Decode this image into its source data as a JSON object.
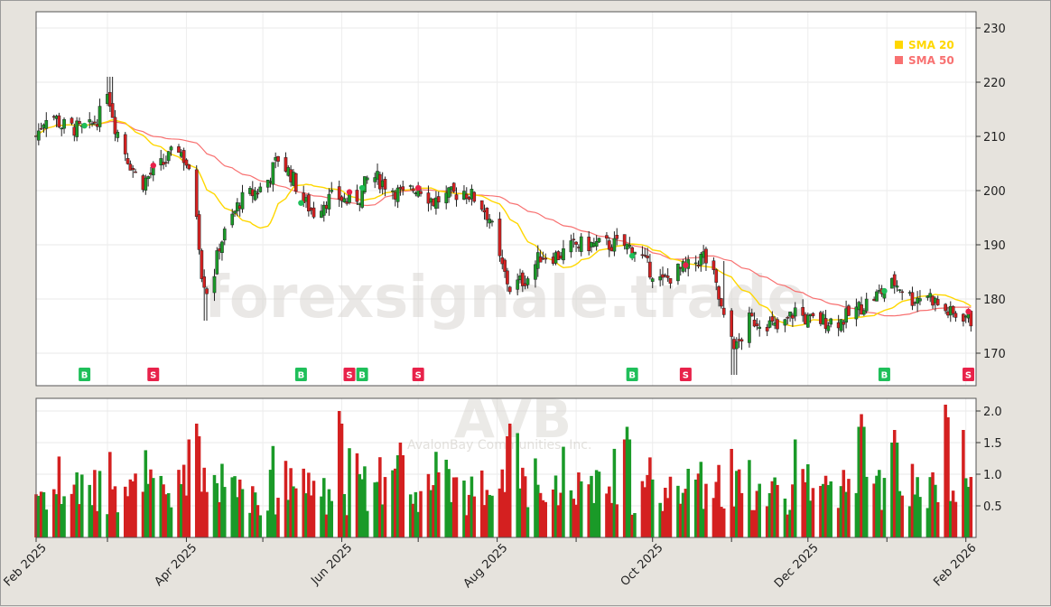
{
  "chart_data": {
    "type": "candlestick",
    "ticker": "AVB",
    "company": "AvalonBay Communities, Inc.",
    "watermark": "forexsignale.trade",
    "x_labels": [
      "Feb 2025",
      "Apr 2025",
      "Jun 2025",
      "Aug 2025",
      "Oct 2025",
      "Dec 2025",
      "Feb 2026"
    ],
    "x_label_days": [
      0,
      59,
      120,
      181,
      242,
      303,
      365
    ],
    "x_minor_days": [
      28,
      89,
      150,
      212,
      273,
      334
    ],
    "x_range_days": [
      0,
      369
    ],
    "price_axis": {
      "ylim": [
        164,
        233
      ],
      "ticks": [
        170,
        180,
        190,
        200,
        210,
        220,
        230
      ]
    },
    "volume_axis": {
      "ylim": [
        0,
        2.2
      ],
      "ticks": [
        0.5,
        1.0,
        1.5,
        2.0
      ],
      "tick_labels": [
        "0.5",
        "1.0",
        "1.5",
        "2.0"
      ]
    },
    "legend": [
      {
        "name": "SMA 20",
        "color": "#FFD700"
      },
      {
        "name": "SMA 50",
        "color": "#F87171"
      }
    ],
    "colors": {
      "up": "#1a9a28",
      "down": "#d42020",
      "sma20": "#FFD700",
      "sma50": "#F87171",
      "buy": "#1fbf5a",
      "sell": "#e8224a"
    },
    "close_anchors": [
      [
        0,
        210
      ],
      [
        5,
        215
      ],
      [
        10,
        212
      ],
      [
        20,
        211
      ],
      [
        25,
        214
      ],
      [
        28,
        219
      ],
      [
        31,
        212
      ],
      [
        36,
        206
      ],
      [
        41,
        201
      ],
      [
        45,
        203
      ],
      [
        50,
        205
      ],
      [
        56,
        208
      ],
      [
        59,
        205
      ],
      [
        63,
        196
      ],
      [
        65,
        185
      ],
      [
        68,
        180
      ],
      [
        72,
        190
      ],
      [
        76,
        194
      ],
      [
        80,
        198
      ],
      [
        90,
        201
      ],
      [
        95,
        206
      ],
      [
        100,
        203
      ],
      [
        105,
        198
      ],
      [
        109,
        196
      ],
      [
        113,
        198
      ],
      [
        118,
        199
      ],
      [
        122,
        198
      ],
      [
        127,
        199
      ],
      [
        131,
        203
      ],
      [
        138,
        201
      ],
      [
        144,
        199
      ],
      [
        150,
        201
      ],
      [
        156,
        198
      ],
      [
        162,
        199
      ],
      [
        168,
        200
      ],
      [
        174,
        198
      ],
      [
        178,
        195
      ],
      [
        182,
        187
      ],
      [
        186,
        182
      ],
      [
        193,
        184
      ],
      [
        198,
        188
      ],
      [
        205,
        188
      ],
      [
        212,
        190
      ],
      [
        218,
        190
      ],
      [
        225,
        190
      ],
      [
        230,
        190
      ],
      [
        236,
        189
      ],
      [
        240,
        186
      ],
      [
        246,
        183
      ],
      [
        251,
        185
      ],
      [
        257,
        186
      ],
      [
        262,
        188
      ],
      [
        266,
        184
      ],
      [
        270,
        176
      ],
      [
        275,
        171
      ],
      [
        280,
        176
      ],
      [
        286,
        176
      ],
      [
        292,
        174
      ],
      [
        298,
        178
      ],
      [
        303,
        176
      ],
      [
        310,
        176
      ],
      [
        316,
        176
      ],
      [
        322,
        178
      ],
      [
        328,
        180
      ],
      [
        334,
        182
      ],
      [
        337,
        183
      ],
      [
        340,
        182
      ],
      [
        344,
        180
      ],
      [
        350,
        181
      ],
      [
        356,
        178
      ],
      [
        360,
        177
      ],
      [
        365,
        177
      ],
      [
        367,
        176
      ]
    ],
    "buy_signal_days": [
      19,
      104,
      128,
      234,
      333
    ],
    "sell_signal_days": [
      46,
      123,
      150,
      255,
      366
    ],
    "spikes": [
      {
        "day": 29,
        "high": 221
      },
      {
        "day": 67,
        "low": 176
      },
      {
        "day": 274,
        "low": 166
      },
      {
        "day": 271,
        "high": 187
      }
    ],
    "volume_spikes": [
      {
        "day": 61,
        "value": 1.75
      },
      {
        "day": 63,
        "value": 1.8
      },
      {
        "day": 119,
        "value": 2.0
      },
      {
        "day": 143,
        "value": 1.5
      },
      {
        "day": 186,
        "value": 1.8
      },
      {
        "day": 188,
        "value": 1.85
      },
      {
        "day": 232,
        "value": 1.75
      },
      {
        "day": 272,
        "value": 1.6
      },
      {
        "day": 299,
        "value": 1.75
      },
      {
        "day": 324,
        "value": 1.95
      },
      {
        "day": 337,
        "value": 1.7
      },
      {
        "day": 357,
        "value": 2.1
      },
      {
        "day": 363,
        "value": 1.9
      }
    ]
  }
}
